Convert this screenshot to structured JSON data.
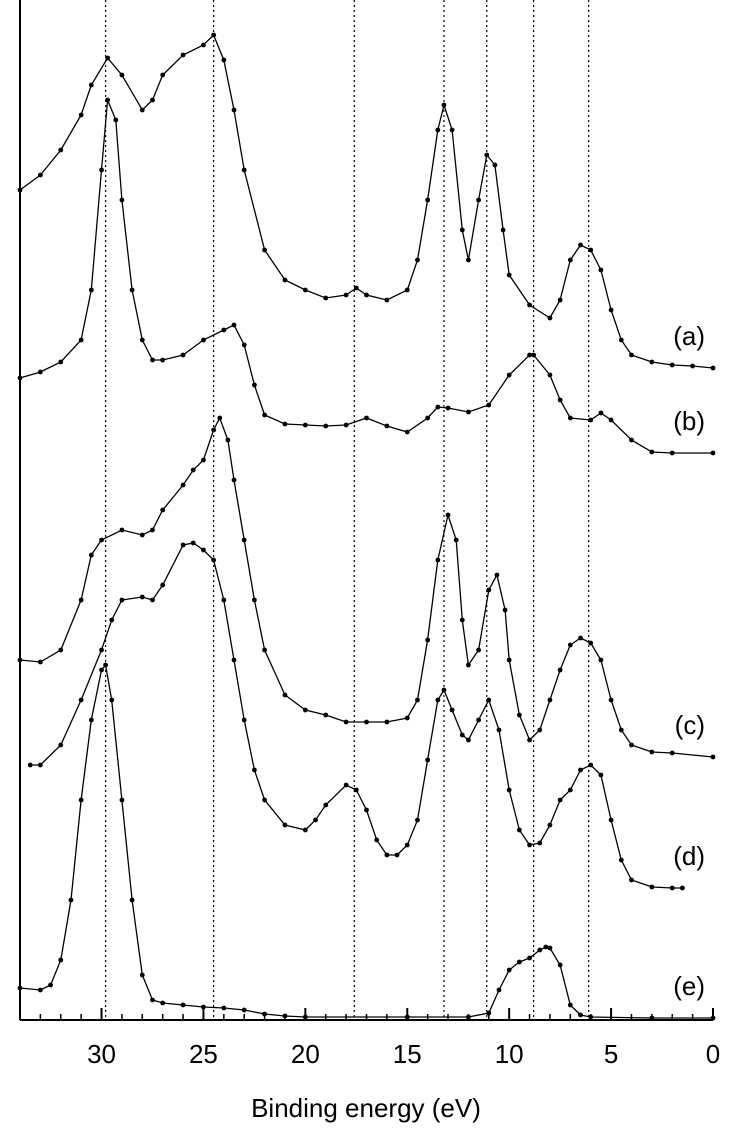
{
  "chart_data": {
    "type": "line",
    "x_label": "Binding energy (eV)",
    "color": "#000000",
    "xlim": [
      34,
      0
    ],
    "ylim": [
      0,
      100
    ],
    "xticks": [
      30,
      25,
      20,
      15,
      10,
      5,
      0
    ],
    "xminorticks": [
      34,
      33,
      32,
      31,
      29,
      28,
      27,
      26,
      24,
      23,
      22,
      21,
      19,
      18,
      17,
      16,
      14,
      13,
      12,
      11,
      9,
      8,
      7,
      6,
      4,
      3,
      2,
      1
    ],
    "vlines": [
      29.8,
      24.5,
      17.6,
      13.2,
      11.1,
      8.8,
      6.1
    ],
    "series": [
      {
        "name": "(a)",
        "x": [
          34,
          33,
          32,
          31,
          30.5,
          29.7,
          29,
          28,
          27.5,
          27,
          26,
          25,
          24.5,
          24,
          23.5,
          23,
          22,
          21,
          20,
          19,
          18,
          17.5,
          17,
          16,
          15,
          14.5,
          14,
          13.5,
          13.2,
          12.8,
          12.3,
          12,
          11.5,
          11.1,
          10.7,
          10.3,
          10,
          9,
          8,
          7.5,
          7,
          6.5,
          6,
          5.5,
          5,
          4.5,
          4,
          3,
          2,
          1,
          0
        ],
        "values": [
          83,
          84.5,
          87,
          90.5,
          93.5,
          96.2,
          94.5,
          91,
          92,
          94.5,
          96.5,
          97.5,
          98.5,
          96,
          91,
          85,
          77,
          74,
          73,
          72.2,
          72.5,
          73.2,
          72.5,
          72,
          73,
          76,
          82,
          89,
          91.5,
          89,
          79,
          76,
          82,
          86.5,
          85.5,
          79,
          74.5,
          71.5,
          70.2,
          72,
          76,
          77.5,
          77,
          75,
          71,
          68,
          66.5,
          65.8,
          65.5,
          65.4,
          65.2
        ]
      },
      {
        "name": "(b)",
        "x": [
          34,
          33,
          32,
          31,
          30.5,
          30,
          29.7,
          29.3,
          29,
          28.5,
          28,
          27.5,
          27,
          26,
          25,
          24,
          23.5,
          23,
          22.5,
          22,
          21,
          20,
          19,
          18,
          17,
          16,
          15,
          14,
          13.5,
          13,
          12,
          11,
          10,
          9,
          8.8,
          8,
          7.5,
          7,
          6,
          5.5,
          5,
          4,
          3,
          2,
          0
        ],
        "values": [
          64.2,
          64.8,
          65.8,
          68,
          73,
          85,
          92,
          90,
          82,
          73,
          68,
          66,
          66,
          66.5,
          68,
          69,
          69.5,
          67.5,
          63.5,
          60.5,
          59.6,
          59.5,
          59.4,
          59.5,
          60.2,
          59.4,
          58.8,
          60.2,
          61.3,
          61.2,
          60.8,
          61.5,
          64.5,
          66.5,
          66.5,
          64.5,
          62,
          60.2,
          60,
          60.7,
          60,
          58,
          56.8,
          56.7,
          56.7
        ]
      },
      {
        "name": "(c)",
        "x": [
          34,
          33,
          32,
          31,
          30.5,
          30,
          29,
          28,
          27.5,
          27,
          26,
          25.5,
          25,
          24.5,
          24.2,
          23.8,
          23.5,
          23,
          22.5,
          22,
          21,
          20,
          19,
          18,
          17,
          16,
          15,
          14.5,
          14,
          13.5,
          13,
          12.6,
          12.3,
          12,
          11.5,
          11,
          10.6,
          10.2,
          10,
          9.5,
          9,
          8.5,
          8,
          7.5,
          7,
          6.5,
          6,
          5.5,
          5,
          4.5,
          4,
          3,
          2,
          0
        ],
        "values": [
          36,
          35.8,
          37,
          42,
          46.5,
          48,
          49,
          48.5,
          49,
          51,
          53.5,
          55,
          56,
          59,
          60.2,
          58,
          54,
          48,
          42,
          37,
          32.5,
          31,
          30.5,
          29.8,
          29.8,
          29.8,
          30.2,
          32,
          38,
          46,
          50.5,
          48,
          40,
          35.5,
          37,
          43,
          44.5,
          41,
          36,
          30.5,
          28,
          29,
          32,
          35,
          37.5,
          38.2,
          37.7,
          36,
          32,
          29,
          27.5,
          26.8,
          26.7,
          26.3
        ]
      },
      {
        "name": "(d)",
        "x": [
          33.5,
          33,
          32,
          31,
          30,
          29.5,
          29,
          28,
          27.5,
          27,
          26,
          25.5,
          25,
          24.5,
          24,
          23.5,
          23,
          22.5,
          22,
          21,
          20,
          19.5,
          19,
          18,
          17.5,
          17,
          16.5,
          16,
          15.5,
          15,
          14.5,
          14,
          13.5,
          13.2,
          12.8,
          12.3,
          12,
          11.5,
          11,
          10.5,
          10,
          9.5,
          9,
          8.5,
          8,
          7.5,
          7,
          6.5,
          6,
          5.5,
          5,
          4.5,
          4,
          3,
          2,
          1.5
        ],
        "values": [
          25.5,
          25.5,
          27.5,
          32,
          37,
          40,
          42,
          42.3,
          42,
          43.5,
          47.5,
          47.7,
          47,
          46,
          42,
          36,
          30,
          25,
          22,
          19.5,
          19,
          20,
          21.5,
          23.5,
          23,
          21,
          18,
          16.5,
          16.5,
          17.5,
          20,
          26,
          32,
          33,
          31,
          28.5,
          28,
          30,
          32,
          29,
          23,
          19,
          17.5,
          17.7,
          19.5,
          22,
          23,
          25,
          25.5,
          24.5,
          20,
          16,
          14,
          13.3,
          13.2,
          13.2
        ]
      },
      {
        "name": "(e)",
        "x": [
          34,
          33,
          32.5,
          32,
          31.5,
          31,
          30.5,
          30,
          29.8,
          29.5,
          29,
          28.5,
          28,
          27.5,
          27,
          26,
          25,
          24,
          23,
          22,
          21,
          20,
          15,
          12,
          11,
          10.5,
          10,
          9.5,
          9,
          8.5,
          8.2,
          8,
          7.5,
          7,
          6.5,
          6,
          3,
          0
        ],
        "values": [
          3.2,
          3,
          3.5,
          6,
          12,
          22,
          30,
          35,
          35.5,
          32,
          22,
          12,
          4.5,
          2,
          1.7,
          1.5,
          1.3,
          1.2,
          1,
          0.6,
          0.4,
          0.3,
          0.3,
          0.3,
          0.7,
          3,
          5,
          5.8,
          6.2,
          7,
          7.3,
          7.2,
          5.5,
          1.5,
          0.5,
          0.3,
          0.2,
          0.2
        ]
      }
    ]
  }
}
